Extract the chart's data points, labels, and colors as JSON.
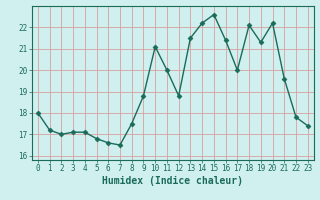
{
  "x": [
    0,
    1,
    2,
    3,
    4,
    5,
    6,
    7,
    8,
    9,
    10,
    11,
    12,
    13,
    14,
    15,
    16,
    17,
    18,
    19,
    20,
    21,
    22,
    23
  ],
  "y": [
    18.0,
    17.2,
    17.0,
    17.1,
    17.1,
    16.8,
    16.6,
    16.5,
    17.5,
    18.8,
    21.1,
    20.0,
    18.8,
    21.5,
    22.2,
    22.6,
    21.4,
    20.0,
    22.1,
    21.3,
    22.2,
    19.6,
    17.8,
    17.4
  ],
  "xlabel": "Humidex (Indice chaleur)",
  "ylim": [
    15.8,
    23.0
  ],
  "xlim": [
    -0.5,
    23.5
  ],
  "yticks": [
    16,
    17,
    18,
    19,
    20,
    21,
    22
  ],
  "xticks": [
    0,
    1,
    2,
    3,
    4,
    5,
    6,
    7,
    8,
    9,
    10,
    11,
    12,
    13,
    14,
    15,
    16,
    17,
    18,
    19,
    20,
    21,
    22,
    23
  ],
  "line_color": "#1a6b5a",
  "marker": "D",
  "marker_size": 2.5,
  "bg_color": "#cff0ee",
  "grid_color": "#d8a0a0",
  "tick_color": "#1a6b5a",
  "label_color": "#1a6b5a",
  "spine_color": "#1a6b5a",
  "tick_fontsize": 5.5,
  "xlabel_fontsize": 7.0,
  "linewidth": 1.0
}
